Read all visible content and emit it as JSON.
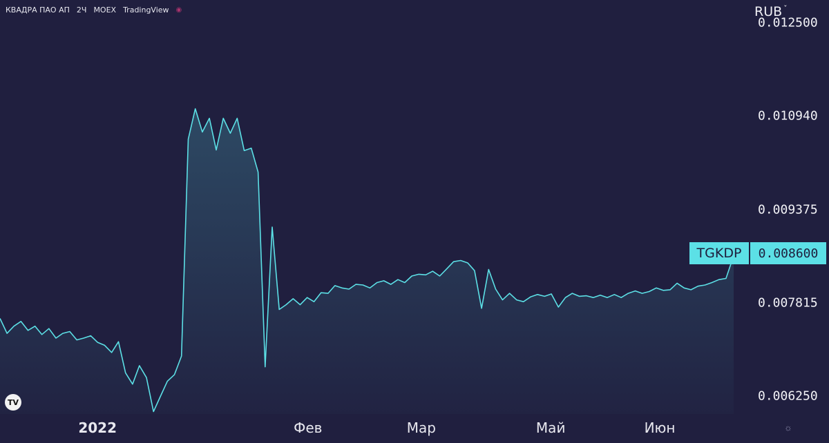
{
  "header": {
    "symbol_name": "КВАДРА ПАО АП",
    "interval": "2Ч",
    "exchange": "MOEX",
    "source": "TradingView"
  },
  "currency": "RUB",
  "badges": {
    "symbol": "TGKDP",
    "price": "0.008600"
  },
  "colors": {
    "background": "#201f3f",
    "line": "#5ce0e6",
    "badge": "#5ce0e6"
  },
  "icons": {
    "logo": "tradingview-logo-icon",
    "settings": "gear-icon"
  },
  "chart_data": {
    "type": "area",
    "title": "",
    "xlabel": "",
    "ylabel": "",
    "y_axis_position": "right",
    "grid": false,
    "ylim": [
      0.00595,
      0.01288
    ],
    "y_ticks": [
      "0.012500",
      "0.010940",
      "0.009375",
      "0.007815",
      "0.006250"
    ],
    "x_ticks": [
      "2022",
      "Фев",
      "Мар",
      "Май",
      "Июн"
    ],
    "x_tick_positions": [
      0.0,
      0.1016,
      0.1563,
      0.2188,
      0.2714
    ],
    "x_range": [
      -0.0471,
      0.3071
    ],
    "last_value": 0.0086,
    "series": [
      {
        "x": [
          -0.0471,
          -0.0437,
          -0.0404,
          -0.037,
          -0.0336,
          -0.0302,
          -0.0269,
          -0.0235,
          -0.0201,
          -0.0168,
          -0.0134,
          -0.01,
          -0.0067,
          -0.0033,
          0.0,
          0.0034,
          0.0068,
          0.0101,
          0.0135,
          0.0169,
          0.0202,
          0.0236,
          0.027,
          0.0304,
          0.0337,
          0.0371,
          0.0405,
          0.0438,
          0.0472,
          0.0506,
          0.054,
          0.0573,
          0.0607,
          0.0641,
          0.0674,
          0.0708,
          0.0742,
          0.0775,
          0.0809,
          0.0843,
          0.0877,
          0.091,
          0.0944,
          0.0978,
          0.1012,
          0.1045,
          0.1079,
          0.1113,
          0.1146,
          0.118,
          0.1214,
          0.1247,
          0.1281,
          0.1315,
          0.1349,
          0.1382,
          0.1416,
          0.145,
          0.1483,
          0.1517,
          0.1551,
          0.1584,
          0.1618,
          0.1652,
          0.1686,
          0.1719,
          0.1753,
          0.1787,
          0.182,
          0.1854,
          0.1888,
          0.1922,
          0.1955,
          0.1989,
          0.2023,
          0.2056,
          0.209,
          0.2124,
          0.2158,
          0.2191,
          0.2225,
          0.2259,
          0.2292,
          0.2326,
          0.236,
          0.2393,
          0.2427,
          0.2461,
          0.2495,
          0.2528,
          0.2562,
          0.2596,
          0.2629,
          0.2663,
          0.2697,
          0.2731,
          0.2764,
          0.2798,
          0.2832,
          0.2865,
          0.2899,
          0.2933,
          0.2966,
          0.3,
          0.3034,
          0.3071
        ],
        "values": [
          0.00755,
          0.0073,
          0.00742,
          0.0075,
          0.00735,
          0.00742,
          0.00728,
          0.00738,
          0.00722,
          0.0073,
          0.00733,
          0.00719,
          0.00722,
          0.00726,
          0.00715,
          0.0071,
          0.00698,
          0.00716,
          0.00664,
          0.00645,
          0.00676,
          0.00656,
          0.00599,
          0.00625,
          0.0065,
          0.00661,
          0.00692,
          0.01055,
          0.01106,
          0.01067,
          0.0109,
          0.01037,
          0.0109,
          0.01065,
          0.0109,
          0.01036,
          0.0104,
          0.01,
          0.00674,
          0.00908,
          0.0077,
          0.00778,
          0.00788,
          0.00778,
          0.0079,
          0.00783,
          0.00798,
          0.00797,
          0.0081,
          0.00806,
          0.00804,
          0.00812,
          0.00811,
          0.00806,
          0.00815,
          0.00818,
          0.00812,
          0.0082,
          0.00815,
          0.00826,
          0.00829,
          0.00828,
          0.00834,
          0.00826,
          0.00838,
          0.0085,
          0.00852,
          0.00848,
          0.00835,
          0.00772,
          0.00837,
          0.00804,
          0.00786,
          0.00797,
          0.00786,
          0.00783,
          0.00791,
          0.00795,
          0.00792,
          0.00796,
          0.00774,
          0.0079,
          0.00797,
          0.00792,
          0.00793,
          0.0079,
          0.00794,
          0.0079,
          0.00795,
          0.0079,
          0.00797,
          0.00801,
          0.00797,
          0.008,
          0.00806,
          0.00802,
          0.00803,
          0.00814,
          0.00806,
          0.00803,
          0.00809,
          0.00811,
          0.00815,
          0.0082,
          0.00822,
          0.0086
        ]
      }
    ]
  }
}
